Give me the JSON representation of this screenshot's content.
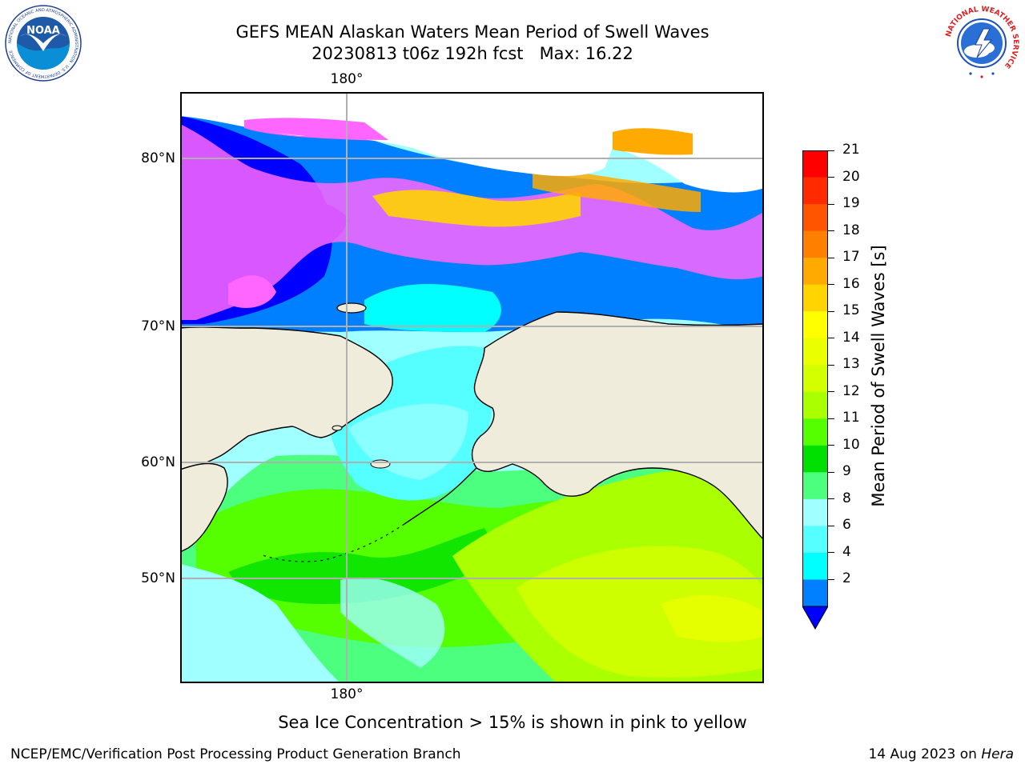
{
  "title": {
    "line1": "GEFS MEAN Alaskan Waters Mean Period of Swell Waves",
    "line2": "20230813 t06z 192h fcst   Max: 16.22"
  },
  "map": {
    "lon_label_top": "180°",
    "lon_label_bottom": "180°",
    "lat_labels": [
      "80°N",
      "70°N",
      "60°N",
      "50°N"
    ],
    "colors": {
      "land": "#efecdc",
      "gridline": "#b0b0b0",
      "coast": "#000000",
      "open_water_white": "#ffffff"
    }
  },
  "colorbar": {
    "title": "Mean Period of Swell Waves [s]",
    "ticks": [
      "21",
      "20",
      "19",
      "18",
      "17",
      "16",
      "15",
      "14",
      "13",
      "12",
      "11",
      "10",
      "9",
      "8",
      "6",
      "4",
      "2"
    ],
    "under_color": "#0000ff",
    "bins": [
      {
        "color": "#ff0000"
      },
      {
        "color": "#ff2a00"
      },
      {
        "color": "#ff5500"
      },
      {
        "color": "#ff7f00"
      },
      {
        "color": "#ffaa00"
      },
      {
        "color": "#ffd400"
      },
      {
        "color": "#ffff00"
      },
      {
        "color": "#eaff00"
      },
      {
        "color": "#d4ff00"
      },
      {
        "color": "#aaff00"
      },
      {
        "color": "#55ff00"
      },
      {
        "color": "#00e000"
      },
      {
        "color": "#4cff7f"
      },
      {
        "color": "#a0ffff"
      },
      {
        "color": "#55ffff"
      },
      {
        "color": "#00ffff"
      },
      {
        "color": "#0080ff"
      }
    ]
  },
  "caption": "Sea Ice Concentration > 15% is shown in pink to yellow",
  "footer": {
    "left": "NCEP/EMC/Verification Post Processing Product Generation Branch",
    "right_prefix": "14 Aug 2023 on ",
    "right_host": "Hera"
  },
  "logos": {
    "noaa_text": "NOAA",
    "noaa_ring_text": "NATIONAL OCEANIC AND ATMOSPHERIC ADMINISTRATION · U.S. DEPARTMENT OF COMMERCE",
    "nws_ring_text": "NATIONAL WEATHER SERVICE"
  }
}
